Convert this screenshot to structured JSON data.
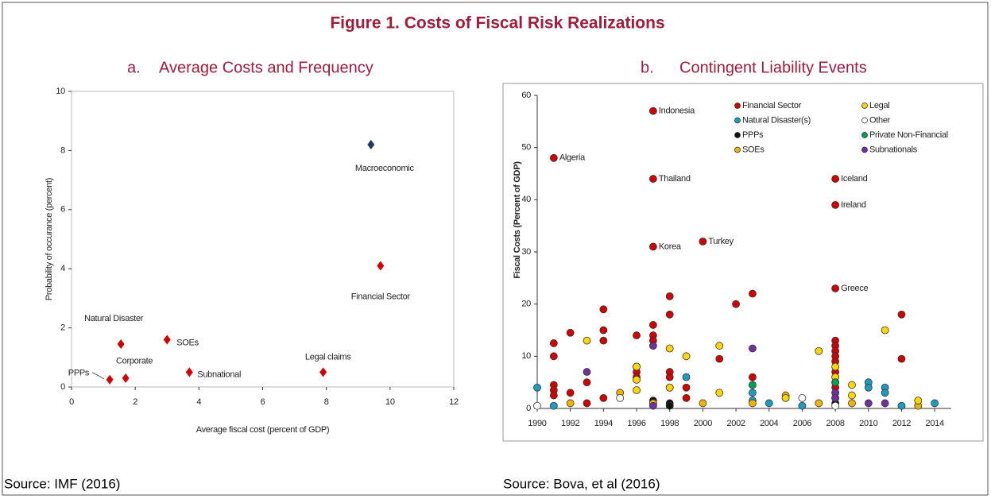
{
  "figure_title": "Figure 1. Costs of Fiscal Risk Realizations",
  "sources": [
    "Source: IMF (2016)",
    "Source: Bova, et al (2016)"
  ],
  "chart_data": [
    {
      "type": "scatter",
      "letter": "a.",
      "title": "Average Costs and Frequency",
      "x_label": "Average fiscal cost (percent of GDP)",
      "y_label": "Probability of occurance (percent)",
      "x": [
        9.4,
        9.7,
        7.9,
        3.0,
        3.7,
        1.55,
        1.7,
        1.2
      ],
      "y": [
        8.2,
        4.1,
        0.5,
        1.6,
        0.5,
        1.45,
        0.3,
        0.25
      ],
      "labels": [
        "Macroeconomic",
        "Financial Sector",
        "Legal claims",
        "SOEs",
        "Subnational",
        "Natural Disaster",
        "Corporate",
        "PPPs"
      ],
      "colors": [
        "#1f3864",
        "#d00000",
        "#d00000",
        "#d00000",
        "#d00000",
        "#d00000",
        "#d00000",
        "#d00000"
      ],
      "xlim": [
        0,
        12
      ],
      "xticks": [
        0,
        2,
        4,
        6,
        8,
        10,
        12
      ],
      "ylim": [
        0,
        10
      ],
      "yticks": [
        0,
        2,
        4,
        6,
        8,
        10
      ]
    },
    {
      "type": "scatter",
      "letter": "b.",
      "title": "Contingent Liability Events",
      "y_label": "Fiscal Costs (Percent of GDP)",
      "xlim": [
        1990,
        2015
      ],
      "xticks": [
        1990,
        1992,
        1994,
        1996,
        1998,
        2000,
        2002,
        2004,
        2006,
        2008,
        2010,
        2012,
        2014
      ],
      "ylim": [
        0,
        60
      ],
      "yticks": [
        0,
        10,
        20,
        30,
        40,
        50,
        60
      ],
      "series": [
        {
          "name": "Financial Sector",
          "color": "#d00000",
          "x": [
            1991,
            1991,
            1991,
            1991,
            1991,
            1991,
            1992,
            1992,
            1993,
            1993,
            1994,
            1994,
            1994,
            1994,
            1996,
            1996,
            1996,
            1997,
            1997,
            1997,
            1997,
            1997,
            1997,
            1998,
            1998,
            1998,
            1998,
            1998,
            1999,
            1999,
            2000,
            2001,
            2002,
            2003,
            2003,
            2008,
            2008,
            2008,
            2008,
            2008,
            2008,
            2008,
            2008,
            2008,
            2008,
            2008,
            2008,
            2008,
            2012,
            2012
          ],
          "y": [
            48,
            12.5,
            10,
            4.5,
            3.5,
            2.5,
            14.5,
            3,
            5,
            1,
            19,
            15,
            13,
            2,
            14,
            7,
            6,
            57,
            44,
            31,
            16,
            14,
            13,
            21.5,
            18,
            7,
            6,
            4,
            4,
            2,
            32,
            9.5,
            20,
            22,
            6,
            44,
            39,
            23,
            13,
            12,
            11,
            10,
            9,
            7,
            6,
            5,
            4,
            3,
            18,
            9.5
          ],
          "labels": [
            "Algeria",
            null,
            null,
            null,
            null,
            null,
            null,
            null,
            null,
            null,
            null,
            null,
            null,
            null,
            null,
            null,
            null,
            "Indonesia",
            "Thailand",
            "Korea",
            null,
            null,
            null,
            null,
            null,
            null,
            null,
            null,
            null,
            null,
            "Turkey",
            null,
            null,
            null,
            null,
            "Iceland",
            "Ireland",
            "Greece",
            null,
            null,
            null,
            null,
            null,
            null,
            null,
            null,
            null,
            null,
            null,
            null
          ]
        },
        {
          "name": "Natural Disaster(s)",
          "color": "#1f9bbf",
          "x": [
            1990,
            1991,
            1999,
            2003,
            2003,
            2004,
            2006,
            2010,
            2010,
            2011,
            2011,
            2012,
            2014
          ],
          "y": [
            4,
            0.5,
            6,
            3,
            1.5,
            1,
            0.5,
            5,
            4,
            4,
            3,
            0.5,
            1
          ]
        },
        {
          "name": "PPPs",
          "color": "#111111",
          "x": [
            1997,
            1997,
            1998,
            1998,
            2008
          ],
          "y": [
            1.5,
            1,
            1,
            0.5,
            1
          ]
        },
        {
          "name": "SOEs",
          "color": "#f0b400",
          "x": [
            1992,
            1995,
            1996,
            1997,
            2000,
            2003,
            2005,
            2007,
            2008,
            2009,
            2013
          ],
          "y": [
            1,
            3,
            8,
            1,
            1,
            1,
            2.5,
            1,
            2,
            1,
            0.5
          ]
        },
        {
          "name": "Legal",
          "color": "#ffd700",
          "x": [
            1993,
            1996,
            1996,
            1996,
            1998,
            1998,
            1999,
            2001,
            2001,
            2005,
            2007,
            2008,
            2008,
            2009,
            2009,
            2011,
            2013
          ],
          "y": [
            13,
            8,
            5.5,
            3.5,
            11.5,
            4,
            10,
            12,
            3,
            2,
            11,
            8,
            6,
            4.5,
            2.5,
            15,
            1.5
          ]
        },
        {
          "name": "Other",
          "color": "#ffffff",
          "x": [
            1990,
            1995,
            2006,
            2008
          ],
          "y": [
            0.5,
            2,
            2,
            0.5
          ]
        },
        {
          "name": "Private Non-Financial",
          "color": "#00a050",
          "x": [
            2003,
            2008
          ],
          "y": [
            4.5,
            5
          ]
        },
        {
          "name": "Subnationals",
          "color": "#7030a0",
          "x": [
            1993,
            1997,
            1997,
            2003,
            2008,
            2008,
            2010,
            2011
          ],
          "y": [
            7,
            12,
            0.5,
            11.5,
            3,
            2,
            1,
            1
          ]
        }
      ]
    }
  ]
}
